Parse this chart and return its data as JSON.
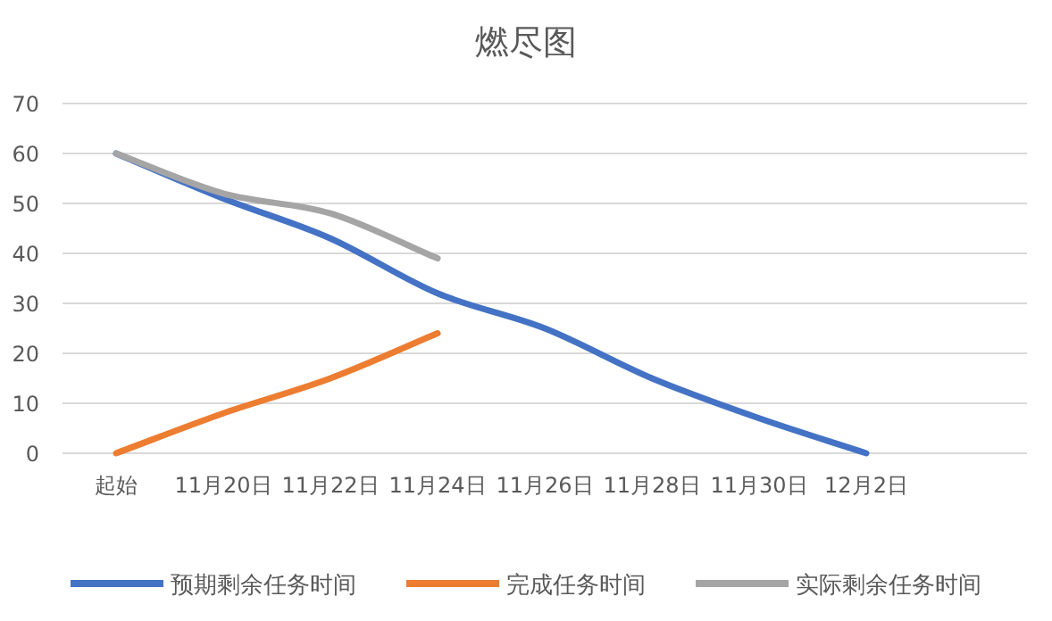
{
  "chart_data": {
    "type": "line",
    "title": "燃尽图",
    "categories": [
      "起始",
      "11月20日",
      "11月22日",
      "11月24日",
      "11月26日",
      "11月28日",
      "11月30日",
      "12月2日",
      null
    ],
    "series": [
      {
        "name": "预期剩余任务时间",
        "color": "#4472c4",
        "values": [
          60,
          51,
          43,
          32,
          25,
          15,
          7,
          0,
          null
        ]
      },
      {
        "name": "完成任务时间",
        "color": "#ed7d31",
        "values": [
          0,
          8,
          15,
          24,
          null,
          null,
          null,
          null,
          null
        ]
      },
      {
        "name": "实际剩余任务时间",
        "color": "#a5a5a5",
        "values": [
          60,
          52,
          48,
          39,
          null,
          null,
          null,
          null,
          null
        ]
      }
    ],
    "ylim": [
      0,
      70
    ],
    "yticks": [
      0,
      10,
      20,
      30,
      40,
      50,
      60,
      70
    ],
    "grid": "y",
    "legend": "bottom",
    "marker": "none",
    "line_style": "solid"
  }
}
